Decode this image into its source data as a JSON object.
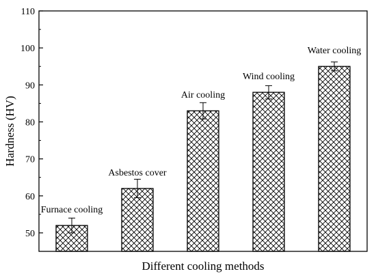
{
  "chart_data": {
    "type": "bar",
    "title": "",
    "xlabel": "Different cooling methods",
    "ylabel": "Hardness (HV)",
    "ylim": [
      45,
      110
    ],
    "yticks": [
      50,
      60,
      70,
      80,
      90,
      100,
      110
    ],
    "grid": false,
    "legend": "none",
    "categories": [
      "Furnace cooling",
      "Asbestos cover",
      "Air cooling",
      "Wind cooling",
      "Water cooling"
    ],
    "values": [
      52,
      62,
      83,
      88,
      95
    ],
    "error": [
      2,
      2.5,
      2.2,
      1.8,
      1.2
    ],
    "bar_pattern": "crosshatch",
    "colors": {
      "bar_fill": "#ffffff",
      "hatch": "#000000",
      "axis": "#000000"
    }
  }
}
